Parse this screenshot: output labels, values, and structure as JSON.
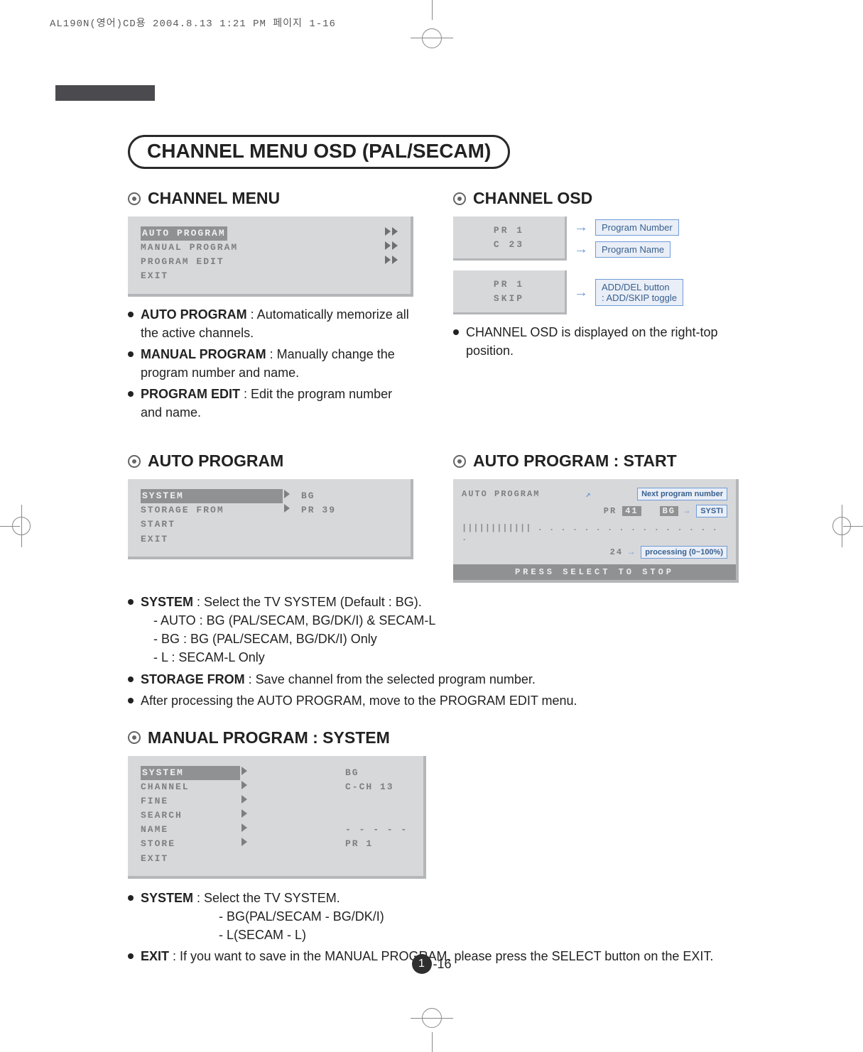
{
  "meta_line": "AL190N(영어)CD용  2004.8.13 1:21 PM  페이지 1-16",
  "page_number_left": "1",
  "page_number_right": "-16",
  "pill_title": "CHANNEL MENU OSD (PAL/SECAM)",
  "sec_channel_menu": "CHANNEL MENU",
  "sec_channel_osd": "CHANNEL OSD",
  "sec_auto_program": "AUTO PROGRAM",
  "sec_auto_program_start": "AUTO PROGRAM : START",
  "sec_manual_program_system": "MANUAL PROGRAM : SYSTEM",
  "channel_menu_osd": {
    "rows": [
      {
        "label": "AUTO PROGRAM",
        "hl": true
      },
      {
        "label": "MANUAL PROGRAM"
      },
      {
        "label": "PROGRAM EDIT"
      },
      {
        "label": "EXIT",
        "noarrow": true
      }
    ]
  },
  "channel_menu_notes": [
    {
      "k": "AUTO PROGRAM",
      "v": " : Automatically memorize all the active channels."
    },
    {
      "k": "MANUAL PROGRAM",
      "v": " : Manually change the program number and name."
    },
    {
      "k": "PROGRAM EDIT",
      "v": " : Edit the program number and name."
    }
  ],
  "channel_osd_box1": {
    "l1": "PR    1",
    "l2": "C   23"
  },
  "channel_osd_box2": {
    "l1": "PR    1",
    "l2": "SKIP"
  },
  "channel_osd_labels": {
    "prog_num": "Program Number",
    "prog_name": "Program Name",
    "add_del": "ADD/DEL button\n: ADD/SKIP toggle"
  },
  "channel_osd_note": "CHANNEL OSD is displayed on the right-top position.",
  "auto_program_osd": {
    "rows": [
      {
        "l": "SYSTEM",
        "hl": true,
        "r": "BG"
      },
      {
        "l": "STORAGE FROM",
        "r": "PR  39"
      },
      {
        "l": "START"
      },
      {
        "l": "EXIT"
      }
    ]
  },
  "auto_prog_notes": [
    {
      "k": "SYSTEM",
      "v": " : Select the TV SYSTEM (Default : BG)."
    },
    {
      "sub": "- AUTO : BG (PAL/SECAM, BG/DK/I) & SECAM-L"
    },
    {
      "sub": "- BG : BG (PAL/SECAM, BG/DK/I) Only"
    },
    {
      "sub": "- L : SECAM-L Only"
    },
    {
      "k": "STORAGE FROM",
      "v": " : Save channel from the selected program number."
    },
    {
      "plain": "After processing the AUTO PROGRAM, move to the PROGRAM EDIT menu."
    }
  ],
  "auto_start": {
    "title": "AUTO PROGRAM",
    "pr": "PR",
    "pr_val": "41",
    "bg": "BG",
    "sys": "SYSTI",
    "next_label": "Next program number",
    "proc_label": "processing (0~100%)",
    "progress_dots": "|||||||||||| . . . . . . . . . . . . . . . . .",
    "progress_num": "24",
    "footer": "PRESS  SELECT  TO  STOP"
  },
  "manual_osd": {
    "rows": [
      {
        "l": "SYSTEM",
        "hl": true,
        "r": "BG"
      },
      {
        "l": "CHANNEL",
        "r": "C-CH  13"
      },
      {
        "l": "FINE"
      },
      {
        "l": "SEARCH"
      },
      {
        "l": "NAME",
        "r": "- - - - -"
      },
      {
        "l": "STORE",
        "r": "PR     1"
      },
      {
        "l": "EXIT",
        "noarrow": true
      }
    ]
  },
  "manual_notes": [
    {
      "k": "SYSTEM",
      "v": " : Select the TV SYSTEM."
    },
    {
      "sub": "- BG(PAL/SECAM - BG/DK/I)"
    },
    {
      "sub": "- L(SECAM - L)"
    },
    {
      "k": "EXIT",
      "v": " : If you want to save in the MANUAL PROGRAM, please press the SELECT button on the EXIT."
    }
  ]
}
